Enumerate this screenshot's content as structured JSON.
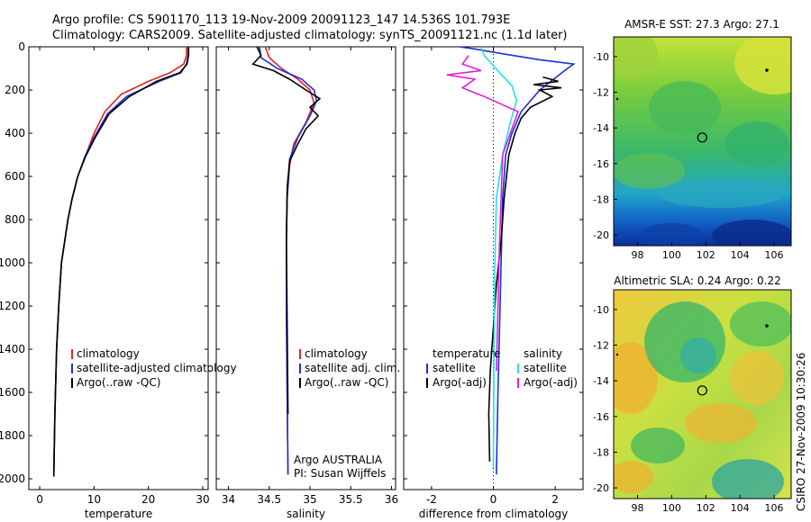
{
  "header": {
    "line1": "Argo profile: CS 5901170_113 19-Nov-2009 20091123_147 14.536S 101.793E",
    "line2": "Climatology: CARS2009. Satellite-adjusted climatology: synTS_20091121.nc (1.1d later)"
  },
  "side_label": "CSIRO 27-Nov-2009 10:30:26",
  "colors": {
    "red": "#e8221e",
    "blue": "#1d2fe0",
    "black": "#000000",
    "cyan": "#22e3e8",
    "magenta": "#e020d8"
  },
  "chart_data": [
    {
      "type": "line",
      "id": "temperature",
      "xlabel": "temperature",
      "xlim": [
        -2,
        31
      ],
      "ylim": [
        2050,
        0
      ],
      "xticks": [
        0,
        10,
        20,
        30
      ],
      "yticks": [
        0,
        200,
        400,
        600,
        800,
        1000,
        1200,
        1400,
        1600,
        1800,
        2000
      ],
      "legend": [
        "climatology",
        "satellite-adjusted climatology",
        "Argo(..raw -QC)"
      ],
      "series": [
        {
          "name": "climatology",
          "color": "red",
          "x": [
            27.0,
            27.0,
            26.5,
            24.0,
            20.0,
            15.0,
            12.0,
            10.0,
            8.5,
            7.0,
            6.0,
            5.2,
            4.6,
            4.0,
            3.5,
            3.1,
            2.8,
            2.6
          ],
          "y": [
            0,
            40,
            80,
            120,
            160,
            220,
            300,
            400,
            500,
            600,
            700,
            800,
            900,
            1000,
            1200,
            1400,
            1700,
            1980
          ]
        },
        {
          "name": "satellite-adjusted climatology",
          "color": "blue",
          "x": [
            27.3,
            27.3,
            27.0,
            26.0,
            22.0,
            16.0,
            12.5,
            10.0,
            8.3,
            7.0,
            6.0,
            5.2,
            4.6,
            4.0,
            3.5,
            3.1,
            2.8,
            2.6
          ],
          "y": [
            0,
            40,
            80,
            120,
            160,
            230,
            310,
            420,
            510,
            600,
            700,
            800,
            900,
            1000,
            1200,
            1400,
            1700,
            1980
          ]
        },
        {
          "name": "Argo(..raw -QC)",
          "color": "black",
          "x": [
            27.4,
            27.4,
            27.1,
            25.8,
            21.5,
            16.5,
            12.8,
            10.2,
            8.4,
            7.0,
            6.0,
            5.2,
            4.6,
            4.0,
            3.5,
            3.1,
            2.8,
            2.6
          ],
          "y": [
            0,
            40,
            80,
            120,
            160,
            230,
            310,
            420,
            510,
            600,
            700,
            800,
            900,
            1000,
            1200,
            1400,
            1700,
            1990
          ]
        }
      ]
    },
    {
      "type": "line",
      "id": "salinity",
      "xlabel": "salinity",
      "xlim": [
        33.85,
        36.05
      ],
      "ylim": [
        2050,
        0
      ],
      "xticks": [
        34,
        34.5,
        35,
        35.5,
        36
      ],
      "xticklabels": [
        "34",
        "34.5",
        "35",
        "35.5",
        "36"
      ],
      "legend": [
        "climatology",
        "satellite adj. clim.",
        "Argo(..raw -QC)"
      ],
      "annotation": [
        "Argo AUSTRALIA",
        "PI: Susan Wijffels"
      ],
      "series": [
        {
          "name": "climatology",
          "color": "red",
          "x": [
            34.45,
            34.5,
            34.65,
            34.85,
            35.0,
            35.05,
            34.95,
            34.8,
            34.75,
            34.72,
            34.71,
            34.71,
            34.72,
            34.73
          ],
          "y": [
            0,
            50,
            100,
            150,
            200,
            260,
            350,
            450,
            550,
            700,
            900,
            1200,
            1600,
            1980
          ]
        },
        {
          "name": "satellite adj. clim.",
          "color": "blue",
          "x": [
            34.38,
            34.4,
            34.6,
            34.9,
            35.05,
            35.08,
            35.0,
            34.85,
            34.75,
            34.72,
            34.71,
            34.71,
            34.72,
            34.73
          ],
          "y": [
            0,
            50,
            100,
            150,
            200,
            250,
            320,
            420,
            520,
            700,
            900,
            1200,
            1600,
            1980
          ]
        },
        {
          "name": "Argo(..raw -QC)",
          "color": "black",
          "x": [
            34.35,
            34.4,
            34.3,
            34.55,
            34.75,
            34.95,
            35.12,
            35.0,
            35.1,
            34.95,
            34.85,
            34.75,
            34.72,
            34.71,
            34.72,
            34.73
          ],
          "y": [
            0,
            40,
            80,
            110,
            150,
            200,
            240,
            280,
            320,
            380,
            450,
            530,
            650,
            900,
            1300,
            1700
          ]
        }
      ]
    },
    {
      "type": "line",
      "id": "difference",
      "xlabel": "difference from climatology",
      "xlim": [
        -2.9,
        2.9
      ],
      "ylim": [
        2050,
        0
      ],
      "xticks": [
        -2,
        0,
        2
      ],
      "legend_left": [
        "temperature",
        "satellite",
        "Argo(-adj)"
      ],
      "legend_right": [
        "salinity",
        "satellite",
        "Argo(-adj)"
      ],
      "series": [
        {
          "name": "temperature satellite",
          "color": "blue",
          "x": [
            -1.1,
            -0.6,
            0.2,
            1.5,
            2.6,
            2.4,
            1.5,
            0.9,
            0.6,
            0.4,
            0.3,
            0.25,
            0.2,
            0.15,
            0.1
          ],
          "y": [
            0,
            10,
            30,
            60,
            80,
            100,
            200,
            300,
            400,
            500,
            700,
            1000,
            1300,
            1600,
            1980
          ]
        },
        {
          "name": "temperature Argo(-adj)",
          "color": "black",
          "x": [
            1.6,
            2.1,
            1.3,
            2.2,
            1.5,
            1.9,
            1.2,
            0.9,
            0.7,
            0.5,
            0.35,
            0.25,
            0.1,
            0.0,
            -0.1,
            -0.15,
            -0.12
          ],
          "y": [
            140,
            160,
            175,
            190,
            200,
            230,
            280,
            330,
            400,
            500,
            700,
            900,
            1100,
            1300,
            1500,
            1700,
            1920
          ]
        },
        {
          "name": "salinity satellite",
          "color": "cyan",
          "x": [
            -0.4,
            -0.3,
            0.2,
            0.6,
            0.75,
            0.55,
            0.3,
            0.1,
            0.05,
            0.02,
            0.0
          ],
          "y": [
            0,
            40,
            120,
            180,
            250,
            350,
            500,
            700,
            1000,
            1400,
            1950
          ]
        },
        {
          "name": "salinity Argo(-adj)",
          "color": "magenta",
          "x": [
            -0.8,
            -1.0,
            -0.4,
            -1.5,
            -0.6,
            -1.0,
            -0.3,
            0.8,
            0.3,
            0.2,
            0.1
          ],
          "y": [
            40,
            80,
            110,
            130,
            150,
            190,
            230,
            300,
            500,
            900,
            1500
          ]
        }
      ]
    },
    {
      "type": "heatmap",
      "id": "sst-map",
      "title": "AMSR-E SST: 27.3 Argo: 27.1",
      "xticks": [
        98,
        100,
        102,
        104,
        106
      ],
      "yticks": [
        -10,
        -12,
        -14,
        -16,
        -18,
        -20
      ],
      "xlim": [
        96.6,
        107
      ],
      "ylim": [
        -20.6,
        -8.9
      ],
      "marker": [
        101.79,
        -14.54
      ]
    },
    {
      "type": "heatmap",
      "id": "sla-map",
      "title": "Altimetric SLA: 0.24 Argo: 0.22",
      "xticks": [
        98,
        100,
        102,
        104,
        106
      ],
      "yticks": [
        -10,
        -12,
        -14,
        -16,
        -18,
        -20
      ],
      "xlim": [
        96.6,
        107
      ],
      "ylim": [
        -20.6,
        -8.9
      ],
      "marker": [
        101.79,
        -14.54
      ]
    }
  ]
}
